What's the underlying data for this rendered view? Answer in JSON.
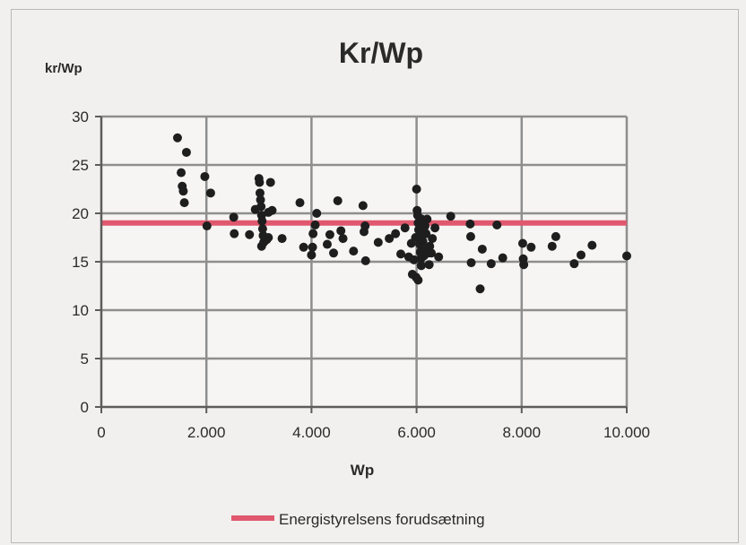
{
  "chart_data": {
    "type": "scatter",
    "title": "Kr/Wp",
    "ylabel": "kr/Wp",
    "xlabel": "Wp",
    "xlim": [
      0,
      10000
    ],
    "ylim": [
      0,
      30
    ],
    "x_ticks": [
      0,
      2000,
      4000,
      6000,
      8000,
      10000
    ],
    "x_tick_labels": [
      "0",
      "2.000",
      "4.000",
      "6.000",
      "8.000",
      "10.000"
    ],
    "y_ticks": [
      0,
      5,
      10,
      15,
      20,
      25,
      30
    ],
    "y_tick_labels": [
      "0",
      "5",
      "10",
      "15",
      "20",
      "25",
      "30"
    ],
    "grid": true,
    "legend_position": "bottom",
    "reference_line": {
      "name": "Energistyrelsens forudsætning",
      "y": 19,
      "color": "#e0586e"
    },
    "points_color": "#1e1e1e",
    "series": [
      {
        "points": [
          [
            1450,
            27.8
          ],
          [
            1520,
            24.2
          ],
          [
            1540,
            22.8
          ],
          [
            1560,
            22.3
          ],
          [
            1580,
            21.1
          ],
          [
            1620,
            26.3
          ],
          [
            1970,
            23.8
          ],
          [
            2010,
            18.7
          ],
          [
            2080,
            22.1
          ],
          [
            2520,
            19.6
          ],
          [
            2530,
            17.9
          ],
          [
            2820,
            17.8
          ],
          [
            2930,
            20.4
          ],
          [
            3000,
            23.6
          ],
          [
            3010,
            23.2
          ],
          [
            3020,
            22.1
          ],
          [
            3030,
            21.4
          ],
          [
            3040,
            20.7
          ],
          [
            3050,
            19.8
          ],
          [
            3060,
            19.2
          ],
          [
            3070,
            18.4
          ],
          [
            3080,
            17.7
          ],
          [
            3090,
            17.0
          ],
          [
            3050,
            16.6
          ],
          [
            3150,
            17.3
          ],
          [
            3180,
            17.5
          ],
          [
            3180,
            20.1
          ],
          [
            3250,
            20.3
          ],
          [
            3220,
            23.2
          ],
          [
            3440,
            17.4
          ],
          [
            3780,
            21.1
          ],
          [
            3850,
            16.5
          ],
          [
            4000,
            15.7
          ],
          [
            4020,
            16.5
          ],
          [
            4030,
            17.9
          ],
          [
            4070,
            18.8
          ],
          [
            4100,
            20.0
          ],
          [
            4300,
            16.8
          ],
          [
            4350,
            17.8
          ],
          [
            4420,
            15.9
          ],
          [
            4500,
            21.3
          ],
          [
            4560,
            18.2
          ],
          [
            4600,
            17.4
          ],
          [
            4800,
            16.1
          ],
          [
            4980,
            20.8
          ],
          [
            5000,
            18.1
          ],
          [
            5020,
            18.7
          ],
          [
            5030,
            15.1
          ],
          [
            5270,
            17.0
          ],
          [
            5480,
            17.4
          ],
          [
            5600,
            17.9
          ],
          [
            5700,
            15.8
          ],
          [
            5780,
            18.5
          ],
          [
            5850,
            15.5
          ],
          [
            5900,
            16.9
          ],
          [
            5920,
            13.7
          ],
          [
            5950,
            15.2
          ],
          [
            5980,
            17.5
          ],
          [
            6000,
            22.5
          ],
          [
            6010,
            20.3
          ],
          [
            6020,
            19.8
          ],
          [
            6030,
            19.0
          ],
          [
            6040,
            18.3
          ],
          [
            6050,
            17.6
          ],
          [
            6060,
            16.8
          ],
          [
            6070,
            16.0
          ],
          [
            6080,
            15.3
          ],
          [
            6090,
            14.6
          ],
          [
            6030,
            13.1
          ],
          [
            5990,
            13.4
          ],
          [
            6100,
            19.4
          ],
          [
            6110,
            18.0
          ],
          [
            6120,
            17.1
          ],
          [
            6130,
            16.3
          ],
          [
            6140,
            15.6
          ],
          [
            6160,
            18.7
          ],
          [
            6180,
            17.9
          ],
          [
            6200,
            19.4
          ],
          [
            6220,
            15.9
          ],
          [
            6240,
            14.7
          ],
          [
            6250,
            16.6
          ],
          [
            6280,
            15.9
          ],
          [
            6300,
            17.4
          ],
          [
            6350,
            18.5
          ],
          [
            6420,
            15.5
          ],
          [
            6650,
            19.7
          ],
          [
            7020,
            18.9
          ],
          [
            7030,
            17.6
          ],
          [
            7040,
            14.9
          ],
          [
            7210,
            12.2
          ],
          [
            7250,
            16.3
          ],
          [
            7420,
            14.8
          ],
          [
            7530,
            18.8
          ],
          [
            7640,
            15.4
          ],
          [
            8020,
            16.9
          ],
          [
            8030,
            15.3
          ],
          [
            8040,
            14.7
          ],
          [
            8180,
            16.5
          ],
          [
            8580,
            16.6
          ],
          [
            8650,
            17.6
          ],
          [
            9000,
            14.8
          ],
          [
            9130,
            15.7
          ],
          [
            9340,
            16.7
          ],
          [
            10000,
            15.6
          ]
        ]
      }
    ]
  }
}
